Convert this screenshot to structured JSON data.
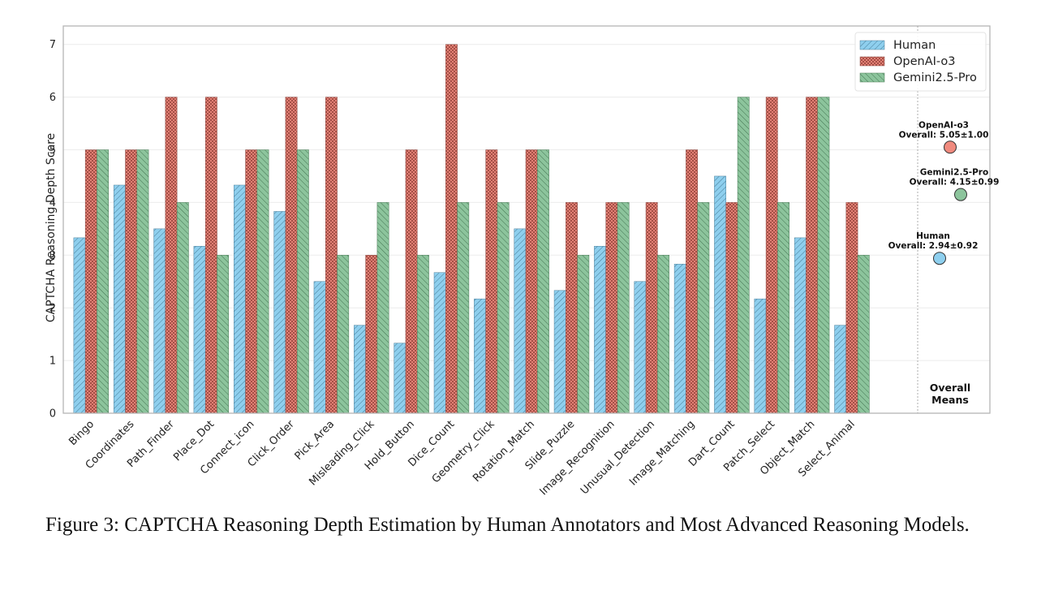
{
  "chart_data": {
    "type": "bar",
    "title": "",
    "xlabel": "",
    "ylabel": "CAPTCHA Reasoning Depth Score",
    "ylim": [
      0,
      7.35
    ],
    "yticks": [
      0,
      1,
      2,
      3,
      4,
      5,
      6,
      7
    ],
    "grid": true,
    "legend_position": "top-right",
    "categories": [
      "Bingo",
      "Coordinates",
      "Path_Finder",
      "Place_Dot",
      "Connect_icon",
      "Click_Order",
      "Pick_Area",
      "Misleading_Click",
      "Hold_Button",
      "Dice_Count",
      "Geometry_Click",
      "Rotation_Match",
      "Slide_Puzzle",
      "Image_Recognition",
      "Unusual_Detection",
      "Image_Matching",
      "Dart_Count",
      "Patch_Select",
      "Object_Match",
      "Select_Animal"
    ],
    "series": [
      {
        "name": "Human",
        "color": "#8ecfee",
        "hatch": "diagonal-forward",
        "values": [
          3.33,
          4.33,
          3.5,
          3.17,
          4.33,
          3.83,
          2.5,
          1.67,
          1.33,
          2.67,
          2.17,
          3.5,
          2.33,
          3.17,
          2.5,
          2.83,
          4.5,
          2.17,
          3.33,
          1.67
        ]
      },
      {
        "name": "OpenAI-o3",
        "color": "#f08a7e",
        "hatch": "crosshatch",
        "values": [
          5,
          5,
          6,
          6,
          5,
          6,
          6,
          3,
          5,
          7,
          5,
          5,
          4,
          4,
          4,
          5,
          4,
          6,
          6,
          4
        ]
      },
      {
        "name": "Gemini2.5-Pro",
        "color": "#8cc49c",
        "hatch": "diagonal-back",
        "values": [
          5,
          5,
          4,
          3,
          5,
          5,
          3,
          4,
          3,
          4,
          4,
          5,
          3,
          4,
          3,
          4,
          6,
          4,
          6,
          3
        ]
      }
    ],
    "overall_means": {
      "label": [
        "Overall",
        "Means"
      ],
      "points": [
        {
          "name": "OpenAI-o3",
          "mean": 5.05,
          "std": 1.0,
          "title": "OpenAI-o3",
          "text": "Overall: 5.05±1.00",
          "color": "#f08a7e"
        },
        {
          "name": "Gemini2.5-Pro",
          "mean": 4.15,
          "std": 0.99,
          "title": "Gemini2.5-Pro",
          "text": "Overall: 4.15±0.99",
          "color": "#8cc49c"
        },
        {
          "name": "Human",
          "mean": 2.94,
          "std": 0.92,
          "title": "Human",
          "text": "Overall: 2.94±0.92",
          "color": "#8ecfee"
        }
      ]
    }
  },
  "caption": "Figure 3: CAPTCHA Reasoning Depth Estimation by Human Annotators and Most Advanced Reasoning Models."
}
